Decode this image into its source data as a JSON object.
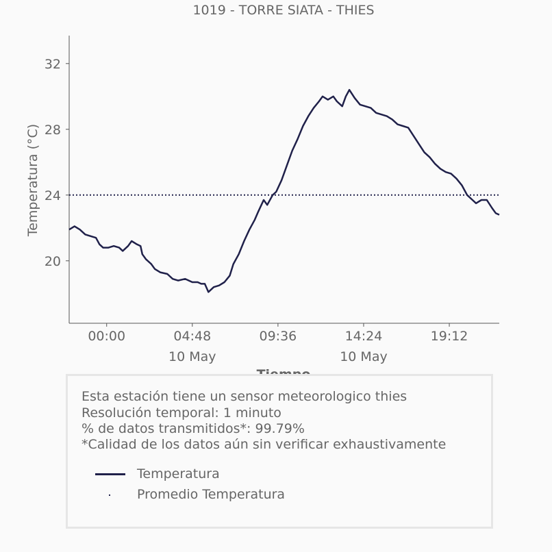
{
  "chart_data": {
    "type": "line",
    "title": "1019 - TORRE SIATA - THIES",
    "xlabel": "Tiempo",
    "ylabel": "Temperatura (°C)",
    "x_start": "2019-05-09T21:54",
    "x_end": "2019-05-11T00:00",
    "xlim_hours": [
      -2.1,
      22.0
    ],
    "ylim": [
      16.2,
      33.7
    ],
    "x_ticks": [
      {
        "time": "00:00",
        "date": "",
        "hours": 0
      },
      {
        "time": "04:48",
        "date": "10 May",
        "hours": 4.8
      },
      {
        "time": "09:36",
        "date": "",
        "hours": 9.6
      },
      {
        "time": "14:24",
        "date": "10 May",
        "hours": 14.4
      },
      {
        "time": "19:12",
        "date": "",
        "hours": 19.2
      }
    ],
    "y_ticks": [
      20,
      24,
      28,
      32
    ],
    "average": 24.0,
    "series": [
      {
        "name": "Temperatura",
        "color": "#20214a",
        "points": [
          [
            -2.1,
            21.9
          ],
          [
            -1.8,
            22.1
          ],
          [
            -1.5,
            21.9
          ],
          [
            -1.2,
            21.6
          ],
          [
            -0.9,
            21.5
          ],
          [
            -0.6,
            21.4
          ],
          [
            -0.4,
            21.0
          ],
          [
            -0.2,
            20.8
          ],
          [
            0.1,
            20.8
          ],
          [
            0.4,
            20.9
          ],
          [
            0.7,
            20.8
          ],
          [
            0.9,
            20.6
          ],
          [
            1.2,
            20.9
          ],
          [
            1.4,
            21.2
          ],
          [
            1.7,
            21.0
          ],
          [
            1.9,
            20.9
          ],
          [
            2.0,
            20.4
          ],
          [
            2.2,
            20.1
          ],
          [
            2.5,
            19.8
          ],
          [
            2.7,
            19.5
          ],
          [
            3.0,
            19.3
          ],
          [
            3.4,
            19.2
          ],
          [
            3.7,
            18.9
          ],
          [
            4.0,
            18.8
          ],
          [
            4.4,
            18.9
          ],
          [
            4.8,
            18.7
          ],
          [
            5.1,
            18.7
          ],
          [
            5.3,
            18.6
          ],
          [
            5.5,
            18.6
          ],
          [
            5.7,
            18.1
          ],
          [
            6.0,
            18.4
          ],
          [
            6.3,
            18.5
          ],
          [
            6.6,
            18.7
          ],
          [
            6.9,
            19.1
          ],
          [
            7.1,
            19.8
          ],
          [
            7.4,
            20.4
          ],
          [
            7.7,
            21.2
          ],
          [
            8.0,
            21.9
          ],
          [
            8.3,
            22.5
          ],
          [
            8.5,
            23.0
          ],
          [
            8.8,
            23.7
          ],
          [
            9.0,
            23.4
          ],
          [
            9.3,
            24.0
          ],
          [
            9.5,
            24.2
          ],
          [
            9.8,
            24.9
          ],
          [
            10.1,
            25.8
          ],
          [
            10.4,
            26.7
          ],
          [
            10.7,
            27.4
          ],
          [
            11.0,
            28.2
          ],
          [
            11.3,
            28.8
          ],
          [
            11.6,
            29.3
          ],
          [
            11.9,
            29.7
          ],
          [
            12.1,
            30.0
          ],
          [
            12.4,
            29.8
          ],
          [
            12.7,
            30.0
          ],
          [
            12.9,
            29.7
          ],
          [
            13.2,
            29.4
          ],
          [
            13.4,
            30.0
          ],
          [
            13.6,
            30.4
          ],
          [
            13.9,
            29.9
          ],
          [
            14.2,
            29.5
          ],
          [
            14.5,
            29.4
          ],
          [
            14.8,
            29.3
          ],
          [
            15.1,
            29.0
          ],
          [
            15.4,
            28.9
          ],
          [
            15.7,
            28.8
          ],
          [
            16.0,
            28.6
          ],
          [
            16.3,
            28.3
          ],
          [
            16.6,
            28.2
          ],
          [
            16.9,
            28.1
          ],
          [
            17.2,
            27.6
          ],
          [
            17.5,
            27.1
          ],
          [
            17.8,
            26.6
          ],
          [
            18.1,
            26.3
          ],
          [
            18.4,
            25.9
          ],
          [
            18.7,
            25.6
          ],
          [
            19.0,
            25.4
          ],
          [
            19.3,
            25.3
          ],
          [
            19.6,
            25.0
          ],
          [
            19.9,
            24.6
          ],
          [
            20.2,
            24.0
          ],
          [
            20.5,
            23.7
          ],
          [
            20.7,
            23.5
          ],
          [
            21.0,
            23.7
          ],
          [
            21.3,
            23.7
          ],
          [
            21.6,
            23.2
          ],
          [
            21.8,
            22.9
          ],
          [
            22.0,
            22.8
          ]
        ]
      }
    ],
    "legend": [
      {
        "label": "Temperatura",
        "style": "solid-line"
      },
      {
        "label": "Promedio Temperatura",
        "style": "dotted-line"
      }
    ]
  },
  "info": {
    "line1": "Esta estación tiene un sensor meteorologico thies",
    "line2": "Resolución temporal: 1 minuto",
    "line3": "% de datos transmitidos*: 99.79%",
    "line4": "*Calidad de los datos aún sin verificar exhaustivamente"
  },
  "colors": {
    "series": "#20214a",
    "text": "#666666",
    "axis": "#555555",
    "box_border": "#e6e6e6"
  }
}
